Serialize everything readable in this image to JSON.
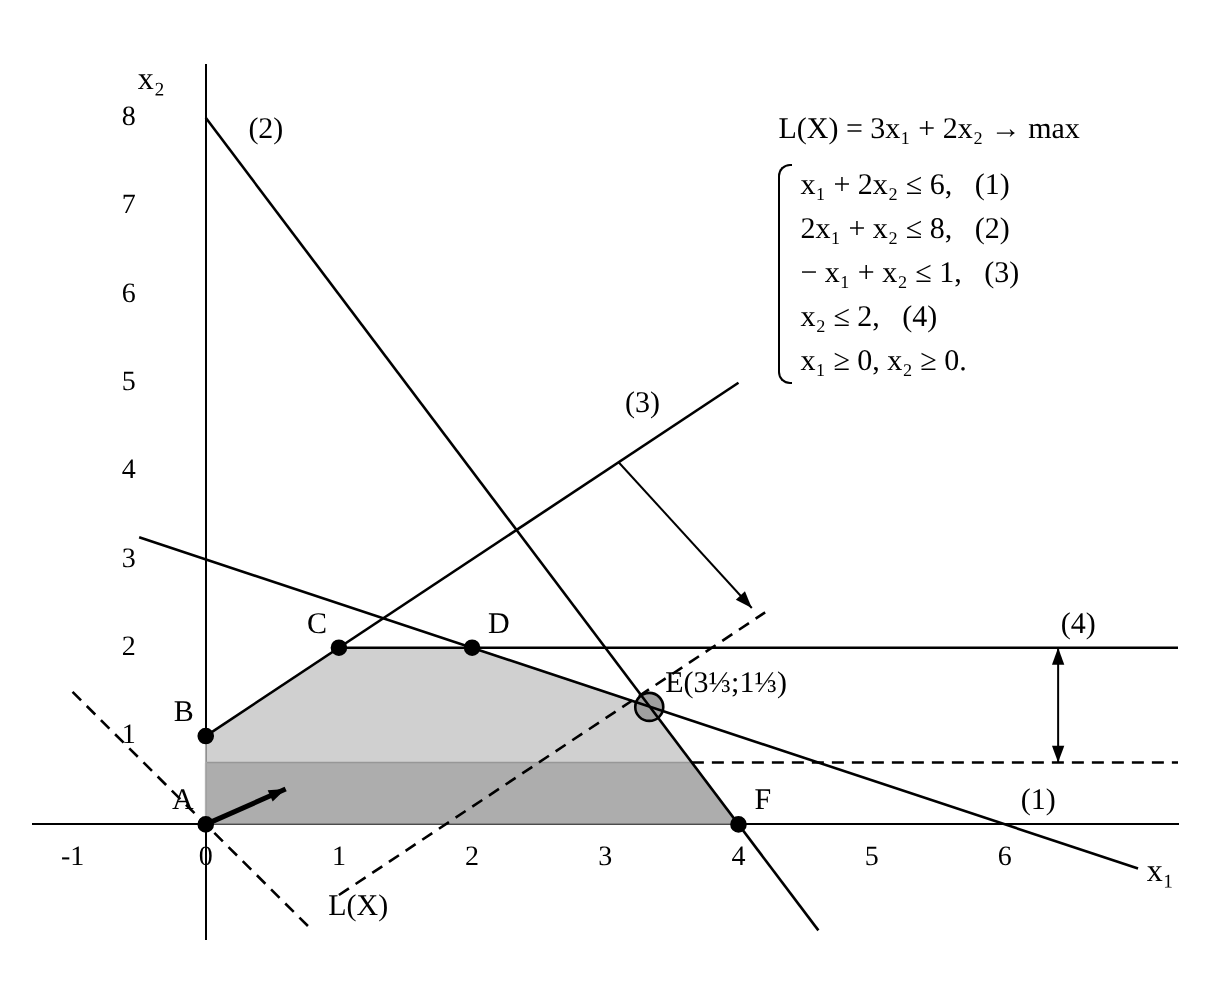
{
  "chart_data": {
    "type": "line",
    "xlabel": "x₁",
    "ylabel": "x₂",
    "xlim": [
      -1.3,
      7.3
    ],
    "ylim": [
      -1.3,
      8.6
    ],
    "xticks": [
      -1,
      0,
      1,
      2,
      3,
      4,
      5,
      6
    ],
    "yticks": [
      1,
      2,
      3,
      4,
      5,
      6,
      7,
      8
    ],
    "grid": false,
    "legend": false,
    "marker": "none",
    "line_style": "solid",
    "series": [
      {
        "color": "#000000",
        "x": [
          -0.5,
          7
        ],
        "values": [
          3.25,
          -0.5
        ]
      },
      {
        "color": "#000000",
        "x": [
          0,
          4.6
        ],
        "values": [
          8,
          -1.2
        ]
      },
      {
        "color": "#000000",
        "x": [
          0,
          4
        ],
        "values": [
          1,
          5
        ]
      },
      {
        "color": "#000000",
        "x": [
          1,
          7.3
        ],
        "values": [
          2,
          2
        ]
      },
      {
        "type": "line",
        "color": "#000000",
        "line_style": "dashed",
        "x": [
          -1,
          0.8
        ],
        "values": [
          1.5,
          -1.2
        ]
      },
      {
        "type": "line",
        "color": "#000000",
        "line_style": "dashed",
        "x": [
          1,
          4.2
        ],
        "values": [
          -0.8,
          2.4
        ]
      },
      {
        "type": "line",
        "color": "#000000",
        "line_style": "dashed",
        "x": [
          3.65,
          7.3
        ],
        "values": [
          0.7,
          0.7
        ]
      },
      {
        "type": "area",
        "color": "#b0b0b0",
        "x": [
          0,
          0,
          1,
          2,
          3.33,
          4
        ],
        "values": [
          0,
          1,
          2,
          2,
          1.33,
          0
        ]
      },
      {
        "type": "area",
        "color": "#707070",
        "x": [
          0,
          0,
          3.65,
          4
        ],
        "values": [
          0,
          0.7,
          0.7,
          0
        ]
      },
      {
        "type": "scatter",
        "color": "#000000",
        "marker": "circle",
        "colors": [
          "#000000",
          "#000000",
          "#000000",
          "#000000",
          "#a0a0a0",
          "#000000"
        ],
        "x": [
          0,
          0,
          1,
          2,
          3.33,
          4
        ],
        "values": [
          0,
          1,
          2,
          2,
          1.33,
          0
        ],
        "sizes": [
          0.25,
          0.25,
          0.25,
          0.25,
          1,
          0.25
        ]
      }
    ],
    "annotations": [
      "L(X) = 3x₁ + 2x₂ → max",
      "x₁ + 2x₂ ≤ 6,   (1)",
      "2x₁ + x₂ ≤ 8,   (2)",
      "− x₁ + x₂ ≤ 1,   (3)",
      "x₂ ≤ 2,   (4)",
      "x₁ ≥ 0, x₂ ≥ 0.",
      {
        "text": "A",
        "x": 0,
        "y": 0
      },
      {
        "text": "B",
        "x": 0,
        "y": 1
      },
      {
        "text": "C",
        "x": 1,
        "y": 2
      },
      {
        "text": "D",
        "x": 2,
        "y": 2
      },
      {
        "text": "E(3⅓;1⅓)",
        "x": 3.33,
        "y": 1.33
      },
      {
        "text": "F",
        "x": 4,
        "y": 0
      },
      {
        "text": "(1)",
        "x": 6,
        "y": 0
      },
      {
        "text": "(2)",
        "x": 0.2,
        "y": 7.6
      },
      {
        "text": "(3)",
        "x": 3.5,
        "y": 4.5
      },
      {
        "text": "(4)",
        "x": 6.3,
        "y": 2
      },
      {
        "text": "L(X)",
        "x": 0.8,
        "y": -1.2
      }
    ]
  }
}
